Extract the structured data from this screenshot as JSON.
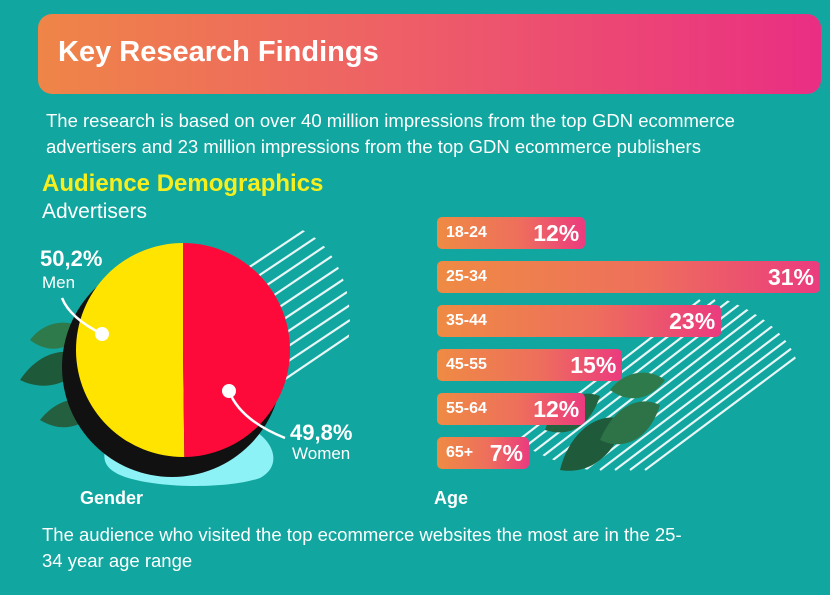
{
  "header": {
    "title": "Key Research Findings"
  },
  "intro_text": "The research is based on over 40 million impressions from the top GDN ecommerce advertisers and 23 million impressions from the top GDN ecommerce publishers",
  "section": {
    "title": "Audience Demographics",
    "subtitle": "Advertisers"
  },
  "footer_text": "The audience who visited the top ecommerce websites the most are in the 25-34 year age range",
  "colors": {
    "background": "#11a69f",
    "men": "#ffe400",
    "women": "#fe0a3a",
    "bar_start": "#ef8b44",
    "bar_end": "#eb3b7f",
    "title_accent": "#f7ef1d"
  },
  "chart_data": [
    {
      "type": "pie",
      "xlabel": "Gender",
      "slices": [
        {
          "name": "Men",
          "label": "50,2%",
          "value": 50.2
        },
        {
          "name": "Women",
          "label": "49,8%",
          "value": 49.8
        }
      ]
    },
    {
      "type": "bar",
      "orientation": "horizontal",
      "xlabel": "Age",
      "categories": [
        "18-24",
        "25-34",
        "35-44",
        "45-55",
        "55-64",
        "65+"
      ],
      "values": [
        12,
        31,
        23,
        15,
        12,
        7
      ],
      "value_labels": [
        "12%",
        "31%",
        "23%",
        "15%",
        "12%",
        "7%"
      ]
    }
  ]
}
